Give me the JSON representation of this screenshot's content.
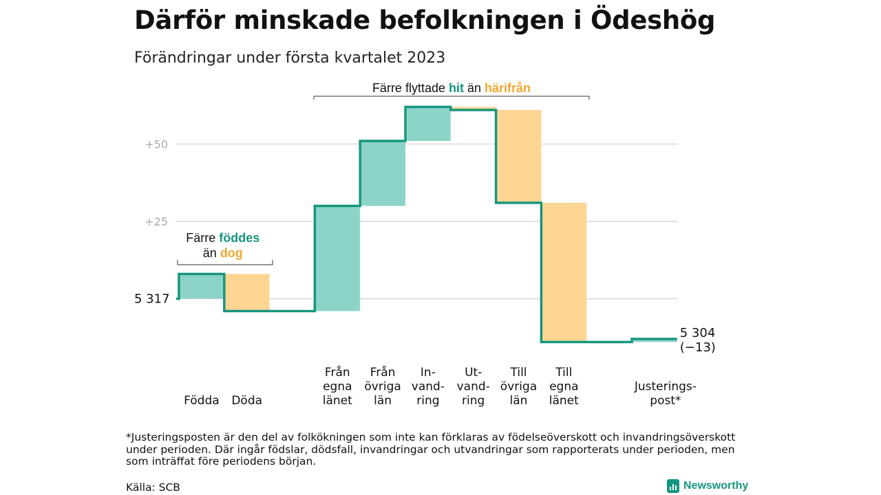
{
  "title": "Därför minskade befolkningen i Ödeshög",
  "subtitle": "Förändringar under första kvartalet 2023",
  "footnote": "*Justeringsposten är den del av folkökningen som inte kan förklaras av födelseöverskott och invandringsöverskott under perioden. Där ingår födslar, dödsfall, invandringar och utvandringar som rapporterats under perioden, men som inträffat före periodens början.",
  "source": "Källa: SCB",
  "brand": "Newsworthy",
  "colors": {
    "increase_fill": "#8dd4c8",
    "decrease_fill": "#fcd592",
    "step_line": "#17967f",
    "teal_text": "#17967f",
    "orange_text": "#f0a72e",
    "grid": "#d9d9d9"
  },
  "annotations": {
    "births": {
      "line1": "Färre",
      "line1_em": "föddes",
      "line2": "än",
      "line2_em": "dog"
    },
    "migration": {
      "pre": "Färre flyttade",
      "em1": "hit",
      "mid": "än",
      "em2": "härifrån"
    }
  },
  "chart_data": {
    "type": "waterfall",
    "baseline": 5317,
    "start_label": "5 317",
    "end_label": "5 304",
    "change_label": "(−13)",
    "y_tick_labels": [
      "+50",
      "+25"
    ],
    "y_tick_values": [
      50,
      25
    ],
    "ylim": [
      -15,
      64
    ],
    "steps": [
      {
        "label": [
          "Födda"
        ],
        "delta": 8,
        "kind": "in"
      },
      {
        "label": [
          "Döda"
        ],
        "delta": -12,
        "kind": "out"
      },
      {
        "label": [],
        "delta": 0,
        "kind": "none"
      },
      {
        "label": [
          "Från",
          "egna",
          "länet"
        ],
        "delta": 34,
        "kind": "in"
      },
      {
        "label": [
          "Från",
          "övriga",
          "län"
        ],
        "delta": 21,
        "kind": "in"
      },
      {
        "label": [
          "In-",
          "vand-",
          "ring"
        ],
        "delta": 11,
        "kind": "in"
      },
      {
        "label": [
          "Ut-",
          "vand-",
          "ring"
        ],
        "delta": -1,
        "kind": "out"
      },
      {
        "label": [
          "Till",
          "övriga",
          "län"
        ],
        "delta": -30,
        "kind": "out"
      },
      {
        "label": [
          "Till",
          "egna",
          "länet"
        ],
        "delta": -45,
        "kind": "out"
      },
      {
        "label": [],
        "delta": 0,
        "kind": "none"
      },
      {
        "label": [
          "Justerings-",
          "post*"
        ],
        "delta": 1,
        "kind": "in"
      }
    ]
  }
}
